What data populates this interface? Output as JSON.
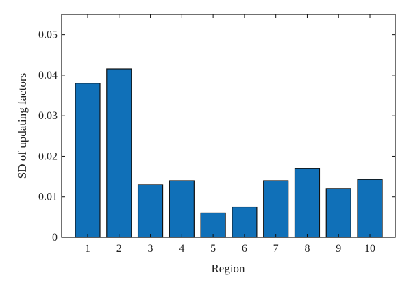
{
  "chart_data": {
    "type": "bar",
    "title": "",
    "xlabel": "Region",
    "ylabel": "SD of updating factors",
    "categories": [
      "1",
      "2",
      "3",
      "4",
      "5",
      "6",
      "7",
      "8",
      "9",
      "10"
    ],
    "values": [
      0.038,
      0.0415,
      0.013,
      0.014,
      0.006,
      0.0075,
      0.014,
      0.017,
      0.012,
      0.0143
    ],
    "ylim": [
      0,
      0.055
    ],
    "yticks": [
      0,
      0.01,
      0.02,
      0.03,
      0.04,
      0.05
    ],
    "ytick_labels": [
      "0",
      "0.01",
      "0.02",
      "0.03",
      "0.04",
      "0.05"
    ],
    "bar_color": "#1070b8",
    "grid": false,
    "legend": false
  }
}
